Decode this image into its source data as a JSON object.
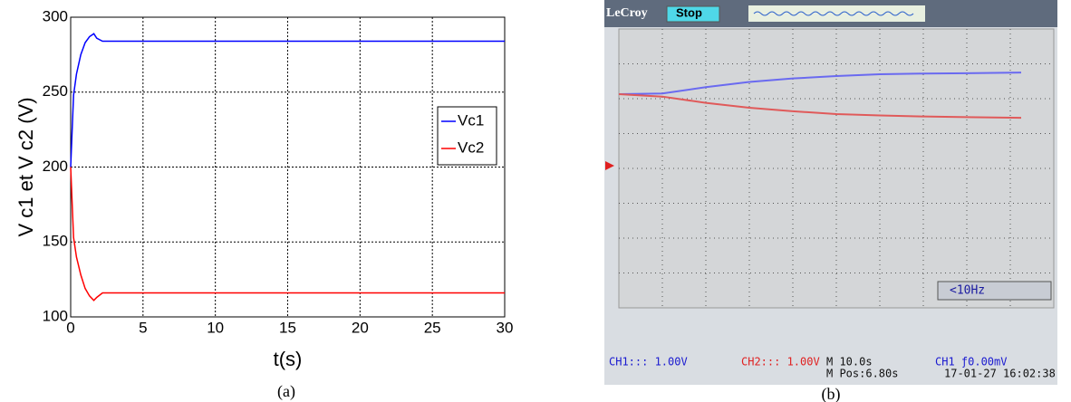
{
  "chart_data": [
    {
      "type": "line",
      "caption": "(a)",
      "xlabel": "t(s)",
      "ylabel": "V c1 et V c2 (V)",
      "x": [
        0,
        0.2,
        0.4,
        0.7,
        1.0,
        1.3,
        1.6,
        1.8,
        2.2,
        3,
        30
      ],
      "series": [
        {
          "name": "Vc1",
          "color": "#0000ff",
          "values": [
            200,
            248,
            262,
            275,
            283,
            287,
            289,
            286,
            284,
            284,
            284
          ]
        },
        {
          "name": "Vc2",
          "color": "#ff0000",
          "values": [
            200,
            153,
            140,
            128,
            119,
            114,
            111,
            113,
            116,
            116,
            116
          ]
        }
      ],
      "xlim": [
        0,
        30
      ],
      "xticks": [
        0,
        5,
        10,
        15,
        20,
        25,
        30
      ],
      "ylim": [
        100,
        300
      ],
      "yticks": [
        100,
        150,
        200,
        250,
        300
      ],
      "grid": true,
      "legend": "right"
    },
    {
      "type": "line",
      "caption": "(b)",
      "x": [
        0,
        1,
        2,
        3,
        4,
        5,
        6,
        7,
        8,
        9.25
      ],
      "series": [
        {
          "color": "#6a6af0",
          "values": [
            2.13,
            2.15,
            2.33,
            2.48,
            2.58,
            2.65,
            2.7,
            2.72,
            2.73,
            2.75
          ]
        },
        {
          "color": "#e05a5a",
          "values": [
            2.13,
            2.06,
            1.88,
            1.74,
            1.64,
            1.56,
            1.52,
            1.49,
            1.47,
            1.45
          ]
        }
      ],
      "xlim": [
        0,
        10
      ],
      "ylim": [
        -4,
        4
      ],
      "grid": true,
      "annotations": [
        "LeCroy",
        "Stop",
        "<10Hz",
        "CH1::: 1.00V",
        "CH2::: 1.00V",
        "M 10.0s",
        "M Pos:6.80s",
        "CH1 ƒ0.00mV",
        "17-01-27 16:02:38"
      ]
    }
  ]
}
